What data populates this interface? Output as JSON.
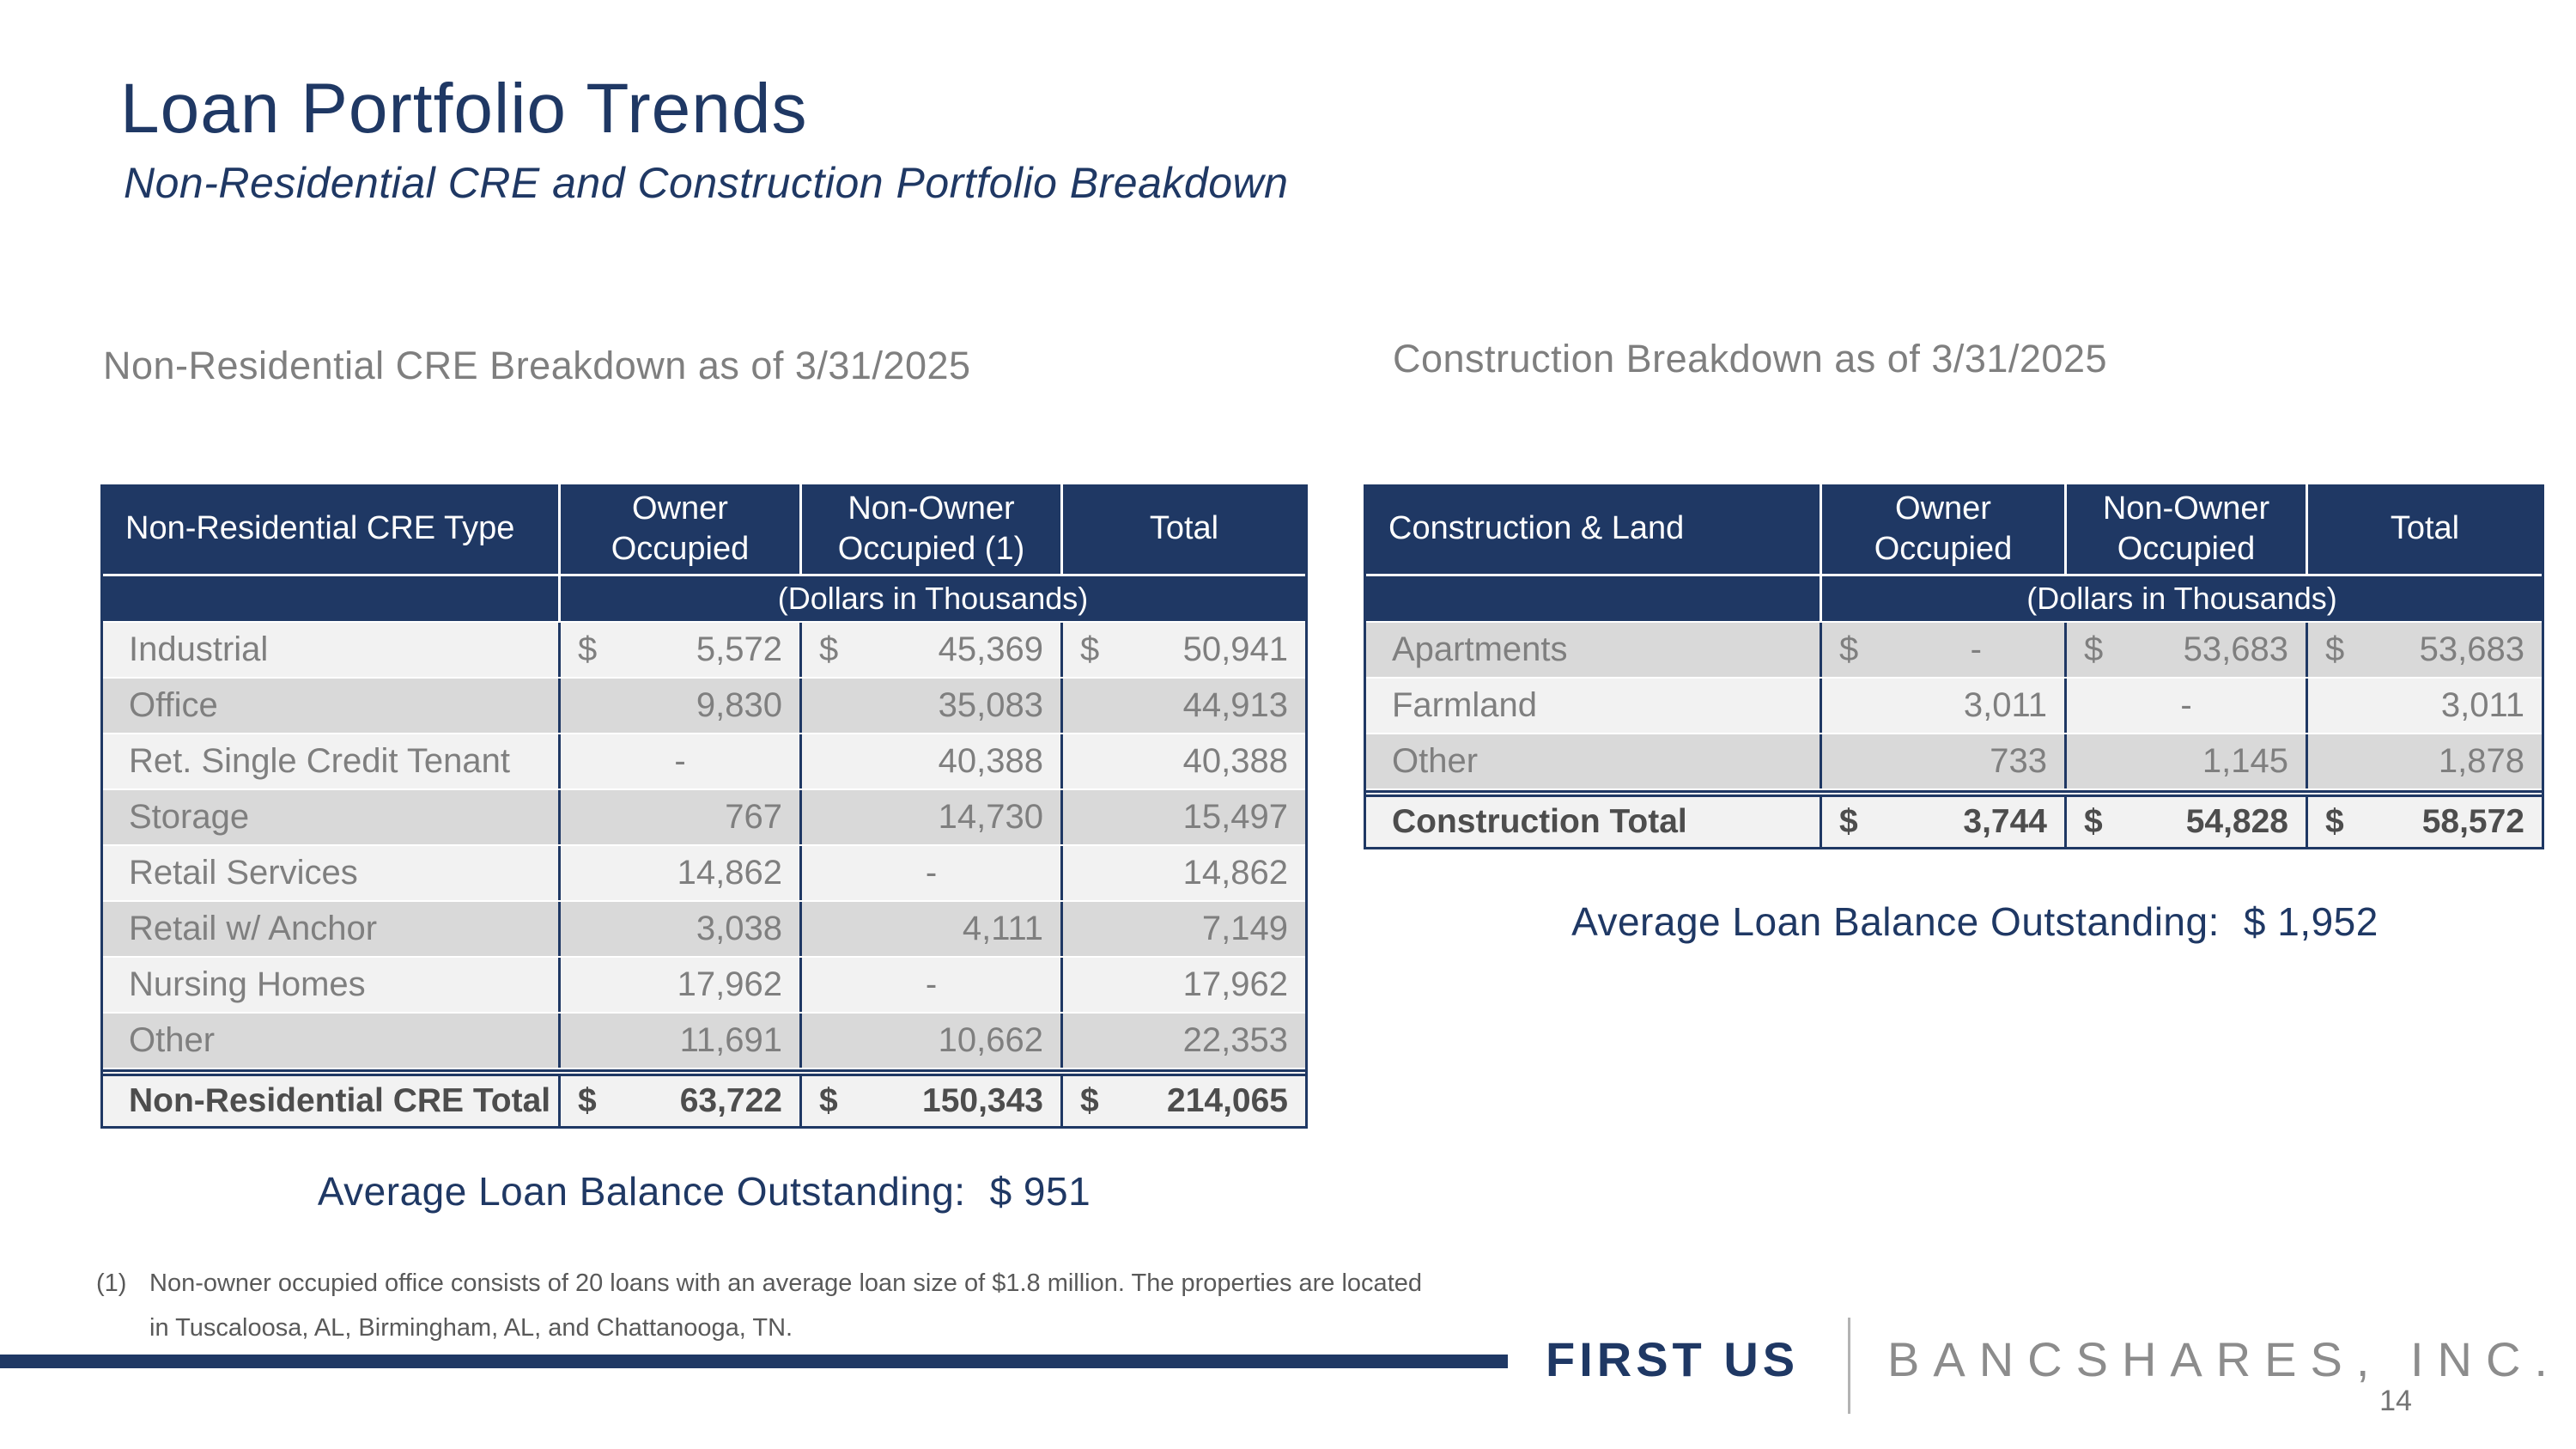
{
  "slide": {
    "title": "Loan Portfolio Trends",
    "subtitle": "Non-Residential CRE and Construction Portfolio Breakdown",
    "page_number": "14",
    "currency_symbol": "$"
  },
  "colors": {
    "navy": "#1f3864",
    "stripe_light": "#f2f2f2",
    "stripe_dark": "#d9d9d9",
    "body_text_gray": "#7f7f7f",
    "total_text_gray": "#4d4d4d",
    "heading_gray": "#7f7f7f",
    "footnote_gray": "#595959",
    "brand_gray": "#8c8c8c"
  },
  "left_section": {
    "heading": "Non-Residential CRE Breakdown as of 3/31/2025",
    "table": {
      "col_headers": [
        "Non-Residential CRE Type",
        "Owner Occupied",
        "Non-Owner Occupied (1)",
        "Total"
      ],
      "units_note": "(Dollars in Thousands)",
      "rows": [
        {
          "label": "Industrial",
          "values": [
            "5,572",
            "45,369",
            "50,941"
          ]
        },
        {
          "label": "Office",
          "values": [
            "9,830",
            "35,083",
            "44,913"
          ]
        },
        {
          "label": "Ret. Single Credit Tenant",
          "values": [
            "-",
            "40,388",
            "40,388"
          ]
        },
        {
          "label": "Storage",
          "values": [
            "767",
            "14,730",
            "15,497"
          ]
        },
        {
          "label": "Retail Services",
          "values": [
            "14,862",
            "-",
            "14,862"
          ]
        },
        {
          "label": "Retail w/ Anchor",
          "values": [
            "3,038",
            "4,111",
            "7,149"
          ]
        },
        {
          "label": "Nursing Homes",
          "values": [
            "17,962",
            "-",
            "17,962"
          ]
        },
        {
          "label": "Other",
          "values": [
            "11,691",
            "10,662",
            "22,353"
          ]
        }
      ],
      "total_row": {
        "label": "Non-Residential CRE Total",
        "values": [
          "63,722",
          "150,343",
          "214,065"
        ]
      }
    },
    "average_label": "Average Loan Balance Outstanding:",
    "average_value": "$ 951"
  },
  "right_section": {
    "heading": "Construction Breakdown as of 3/31/2025",
    "table": {
      "col_headers": [
        "Construction & Land",
        "Owner Occupied",
        "Non-Owner Occupied",
        "Total"
      ],
      "units_note": "(Dollars in Thousands)",
      "rows": [
        {
          "label": "Apartments",
          "values": [
            "-",
            "53,683",
            "53,683"
          ]
        },
        {
          "label": "Farmland",
          "values": [
            "3,011",
            "-",
            "3,011"
          ]
        },
        {
          "label": "Other",
          "values": [
            "733",
            "1,145",
            "1,878"
          ]
        }
      ],
      "total_row": {
        "label": "Construction Total",
        "values": [
          "3,744",
          "54,828",
          "58,572"
        ]
      }
    },
    "average_label": "Average Loan Balance Outstanding:",
    "average_value": "$ 1,952"
  },
  "footnote": {
    "marker": "(1)",
    "line1": "Non-owner occupied office consists of 20 loans with an average loan size of $1.8 million. The properties are located",
    "line2": "in Tuscaloosa, AL, Birmingham, AL, and Chattanooga, TN."
  },
  "footer": {
    "brand_primary": "FIRST US",
    "brand_secondary": "BANCSHARES, INC."
  }
}
